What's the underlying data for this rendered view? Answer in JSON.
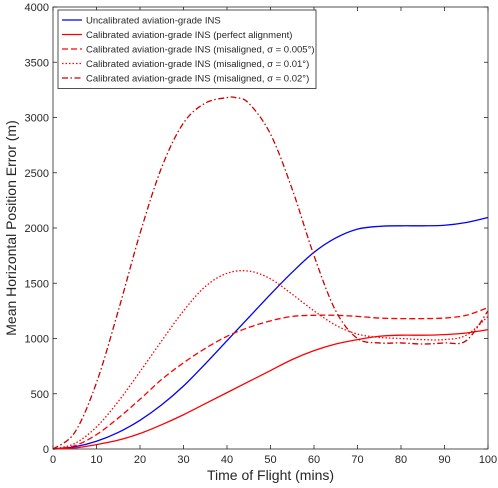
{
  "chart_data": {
    "type": "line",
    "title": "",
    "xlabel": "Time of Flight (mins)",
    "ylabel": "Mean Horizontal Position Error (m)",
    "xlim": [
      0,
      100
    ],
    "ylim": [
      0,
      4000
    ],
    "xticks": [
      0,
      10,
      20,
      30,
      40,
      50,
      60,
      70,
      80,
      90,
      100
    ],
    "yticks": [
      0,
      500,
      1000,
      1500,
      2000,
      2500,
      3000,
      3500,
      4000
    ],
    "grid": false,
    "legend_position": "top-left",
    "series": [
      {
        "name": "Uncalibrated aviation-grade INS",
        "color": "#0000ff",
        "dash": "solid",
        "x": [
          0,
          5,
          10,
          15,
          20,
          25,
          30,
          35,
          40,
          45,
          50,
          55,
          60,
          65,
          70,
          75,
          80,
          85,
          90,
          95,
          100
        ],
        "y": [
          0,
          20,
          70,
          150,
          260,
          400,
          570,
          770,
          980,
          1190,
          1400,
          1600,
          1780,
          1910,
          1990,
          2015,
          2020,
          2020,
          2025,
          2050,
          2095
        ]
      },
      {
        "name": "Calibrated aviation-grade INS (perfect alignment)",
        "color": "#ff0000",
        "dash": "solid",
        "x": [
          0,
          5,
          10,
          15,
          20,
          25,
          30,
          35,
          40,
          45,
          50,
          55,
          60,
          65,
          70,
          75,
          80,
          85,
          90,
          95,
          100
        ],
        "y": [
          0,
          10,
          40,
          80,
          140,
          220,
          310,
          410,
          510,
          610,
          710,
          810,
          890,
          950,
          990,
          1020,
          1030,
          1030,
          1035,
          1050,
          1080
        ]
      },
      {
        "name": "Calibrated aviation-grade INS (misaligned, σ = 0.005°)",
        "color": "#ff0000",
        "dash": "dashed",
        "x": [
          0,
          5,
          10,
          15,
          20,
          25,
          30,
          35,
          40,
          45,
          50,
          55,
          60,
          65,
          70,
          75,
          80,
          85,
          90,
          95,
          100
        ],
        "y": [
          0,
          30,
          130,
          280,
          450,
          630,
          780,
          910,
          1020,
          1100,
          1160,
          1200,
          1210,
          1210,
          1200,
          1185,
          1180,
          1180,
          1185,
          1210,
          1280
        ]
      },
      {
        "name": "Calibrated aviation-grade INS (misaligned, σ = 0.01°)",
        "color": "#ff0000",
        "dash": "dotted",
        "x": [
          0,
          5,
          10,
          15,
          20,
          25,
          30,
          35,
          40,
          45,
          50,
          55,
          60,
          65,
          70,
          75,
          80,
          85,
          90,
          95,
          100
        ],
        "y": [
          0,
          50,
          200,
          430,
          700,
          980,
          1250,
          1470,
          1590,
          1610,
          1540,
          1400,
          1250,
          1120,
          1040,
          1010,
          1000,
          990,
          990,
          1030,
          1200
        ]
      },
      {
        "name": "Calibrated aviation-grade INS (misaligned, σ = 0.02°)",
        "color": "#cc0000",
        "dash": "dashdot",
        "x": [
          0,
          5,
          10,
          15,
          20,
          25,
          30,
          35,
          40,
          42,
          45,
          50,
          55,
          60,
          65,
          70,
          75,
          80,
          85,
          90,
          95,
          100
        ],
        "y": [
          0,
          150,
          600,
          1250,
          1950,
          2550,
          2950,
          3130,
          3180,
          3180,
          3130,
          2850,
          2350,
          1750,
          1250,
          1000,
          960,
          960,
          950,
          960,
          980,
          1250
        ]
      }
    ]
  }
}
